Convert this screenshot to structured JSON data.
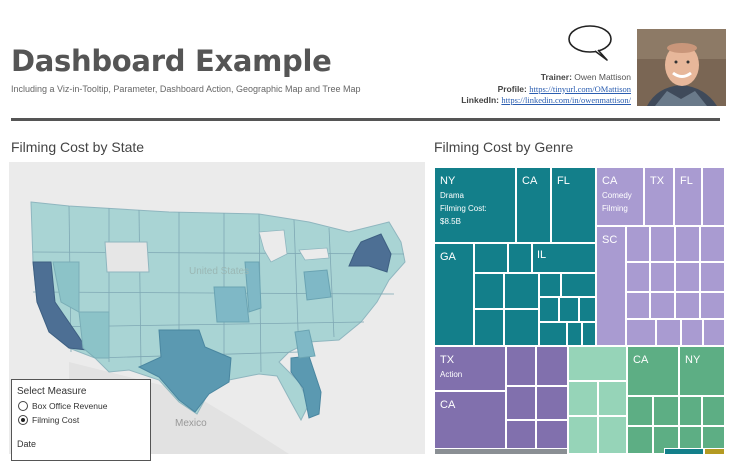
{
  "header": {
    "title": "Dashboard Example",
    "subtitle": "Including a Viz-in-Tooltip, Parameter, Dashboard Action, Geographic Map and Tree Map"
  },
  "credits": {
    "trainer_label": "Trainer:",
    "trainer_name": "Owen Mattison",
    "profile_label": "Profile:",
    "profile_url": "https://tinyurl.com/OMattison",
    "linkedin_label": "LinkedIn:",
    "linkedin_url": "https://linkedin.com/in/owenmattison/"
  },
  "map_section": {
    "title": "Filming Cost by State",
    "country_label": "United States",
    "mexico_label": "Mexico",
    "legend": {
      "heading": "Select Measure",
      "options": [
        "Box Office Revenue",
        "Filming Cost"
      ],
      "selected": "Filming Cost",
      "date_label": "Date"
    }
  },
  "treemap_section": {
    "title": "Filming Cost by Genre",
    "blocks": {
      "drama": {
        "state": "NY",
        "genre": "Drama",
        "cost_label": "Filming Cost:",
        "cost": "$8.5B",
        "others": [
          "CA",
          "FL",
          "GA",
          "IL"
        ]
      },
      "comedy": {
        "state": "CA",
        "genre": "Comedy",
        "cost_label": "Filming",
        "others": [
          "TX",
          "FL",
          "SC"
        ]
      },
      "action": {
        "state": "TX",
        "genre": "Action",
        "others": [
          "CA"
        ]
      },
      "green": {
        "others": [
          "CA",
          "NY"
        ]
      }
    },
    "colors": {
      "teal": "#137f8a",
      "purple": "#a99bd1",
      "violet": "#8170ad",
      "mint": "#7fc5a9",
      "green": "#5dae84",
      "mintlight": "#96d4b8",
      "gray": "#8a8f94",
      "olive": "#b49a22"
    }
  }
}
